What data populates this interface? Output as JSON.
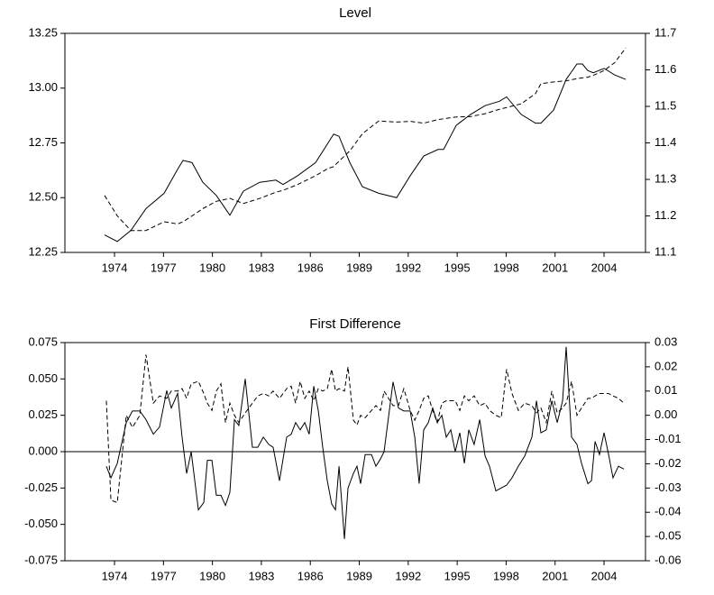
{
  "chart_data": [
    {
      "type": "line",
      "title": "Level",
      "x": [
        1973.39,
        1974.17,
        1975.0,
        1975.93,
        1977.04,
        1977.87,
        1978.2,
        1978.75,
        1979.41,
        1980.24,
        1981.07,
        1981.9,
        1982.9,
        1983.89,
        1984.33,
        1985.22,
        1986.32,
        1987.09,
        1987.43,
        1987.76,
        1988.42,
        1989.19,
        1990.19,
        1991.29,
        1992.12,
        1992.95,
        1993.83,
        1994.17,
        1994.94,
        1995.82,
        1996.71,
        1997.59,
        1998.03,
        1998.92,
        1999.8,
        2000.13,
        2000.91,
        2001.68,
        2002.34,
        2002.67,
        2003.01,
        2003.34,
        2004.0,
        2004.66,
        2005.33
      ],
      "xlim": [
        1970.96,
        2006.54
      ],
      "xticks": [
        1974,
        1977,
        1980,
        1983,
        1986,
        1989,
        1992,
        1995,
        1998,
        2001,
        2004
      ],
      "ylim": [
        12.25,
        13.25
      ],
      "yticks": [
        12.25,
        {
          "value": 12.5,
          "label": "12.50"
        },
        12.75,
        {
          "value": 13,
          "label": "13.00"
        },
        13.25
      ],
      "y2lim": [
        11.1,
        11.7
      ],
      "y2ticks": [
        11.1,
        11.2,
        11.3,
        11.4,
        11.5,
        11.6,
        11.7
      ],
      "series": [
        {
          "color": "#000000",
          "dash": "solid",
          "values": [
            12.33,
            12.3,
            12.35,
            12.45,
            12.52,
            12.63,
            12.67,
            12.66,
            12.57,
            12.51,
            12.42,
            12.53,
            12.57,
            12.58,
            12.56,
            12.6,
            12.66,
            12.75,
            12.79,
            12.78,
            12.66,
            12.55,
            12.52,
            12.5,
            12.6,
            12.69,
            12.72,
            12.72,
            12.83,
            12.88,
            12.92,
            12.94,
            12.96,
            12.88,
            12.84,
            12.84,
            12.9,
            13.04,
            13.11,
            13.11,
            13.08,
            13.07,
            13.09,
            13.06,
            13.04
          ]
        },
        {
          "color": "#000000",
          "dash": "dashed",
          "axis": "y2",
          "values": [
            11.256,
            11.2,
            11.16,
            11.16,
            11.184,
            11.178,
            11.184,
            11.2,
            11.22,
            11.24,
            11.248,
            11.234,
            11.248,
            11.265,
            11.27,
            11.286,
            11.31,
            11.33,
            11.335,
            11.35,
            11.378,
            11.425,
            11.46,
            11.457,
            11.459,
            11.454,
            11.464,
            11.466,
            11.471,
            11.472,
            11.48,
            11.492,
            11.497,
            11.507,
            11.535,
            11.562,
            11.567,
            11.57,
            11.576,
            11.578,
            11.58,
            11.585,
            11.598,
            11.62,
            11.66
          ]
        }
      ]
    },
    {
      "type": "line",
      "title": "First Difference",
      "zero_line": true,
      "x": [
        1973.5,
        1973.78,
        1974.17,
        1974.72,
        1975.1,
        1975.55,
        1975.93,
        1976.38,
        1976.76,
        1977.2,
        1977.48,
        1977.87,
        1978.14,
        1978.42,
        1978.7,
        1979.14,
        1979.47,
        1979.69,
        1979.97,
        1980.24,
        1980.52,
        1980.8,
        1981.07,
        1981.35,
        1981.62,
        1982.01,
        1982.45,
        1982.78,
        1983.12,
        1983.45,
        1983.72,
        1984.11,
        1984.55,
        1984.83,
        1985.1,
        1985.38,
        1985.66,
        1985.93,
        1986.21,
        1986.49,
        1986.76,
        1987.04,
        1987.31,
        1987.54,
        1987.76,
        1988.09,
        1988.31,
        1988.64,
        1988.86,
        1989.08,
        1989.36,
        1989.75,
        1990.02,
        1990.3,
        1990.52,
        1991.07,
        1991.4,
        1991.73,
        1992.12,
        1992.4,
        1992.67,
        1992.95,
        1993.23,
        1993.5,
        1993.78,
        1994.06,
        1994.33,
        1994.61,
        1994.88,
        1995.16,
        1995.44,
        1995.71,
        1996.04,
        1996.38,
        1996.71,
        1996.98,
        1997.37,
        1997.7,
        1998.03,
        1998.36,
        1998.75,
        1999.14,
        1999.58,
        1999.86,
        2000.13,
        2000.46,
        2000.8,
        2001.13,
        2001.46,
        2001.68,
        2002.01,
        2002.34,
        2002.62,
        2003.01,
        2003.23,
        2003.45,
        2003.72,
        2004.0,
        2004.28,
        2004.55,
        2004.88,
        2005.22
      ],
      "xlim": [
        1970.96,
        2006.54
      ],
      "xticks": [
        1974,
        1977,
        1980,
        1983,
        1986,
        1989,
        1992,
        1995,
        1998,
        2001,
        2004
      ],
      "ylim": [
        -0.075,
        0.075
      ],
      "yticks": [
        -0.075,
        {
          "value": -0.05,
          "label": "-0.050"
        },
        -0.025,
        {
          "value": 0,
          "label": "0.000"
        },
        0.025,
        {
          "value": 0.05,
          "label": "0.050"
        },
        0.075
      ],
      "y2lim": [
        -0.06,
        0.03
      ],
      "y2ticks": [
        -0.06,
        -0.05,
        -0.04,
        -0.03,
        -0.02,
        -0.01,
        {
          "value": 0,
          "label": "0.00"
        },
        0.01,
        0.02,
        0.03
      ],
      "series": [
        {
          "color": "#000000",
          "dash": "solid",
          "values": [
            -0.01,
            -0.018,
            -0.008,
            0.02,
            0.028,
            0.028,
            0.022,
            0.012,
            0.017,
            0.042,
            0.03,
            0.04,
            0.01,
            -0.015,
            0.0,
            -0.04,
            -0.035,
            -0.006,
            -0.006,
            -0.03,
            -0.03,
            -0.037,
            -0.028,
            0.022,
            0.018,
            0.05,
            0.003,
            0.003,
            0.01,
            0.005,
            0.003,
            -0.02,
            0.01,
            0.012,
            0.02,
            0.015,
            0.02,
            0.012,
            0.045,
            0.028,
            0.003,
            -0.02,
            -0.036,
            -0.04,
            -0.01,
            -0.06,
            -0.025,
            -0.015,
            -0.01,
            -0.022,
            -0.002,
            -0.002,
            -0.01,
            -0.005,
            0.0,
            0.048,
            0.03,
            0.028,
            0.028,
            0.01,
            -0.022,
            0.015,
            0.02,
            0.03,
            0.02,
            0.025,
            0.01,
            0.015,
            0.0,
            0.013,
            -0.008,
            0.015,
            0.005,
            0.022,
            -0.003,
            -0.01,
            -0.027,
            -0.025,
            -0.023,
            -0.018,
            -0.01,
            -0.003,
            0.01,
            0.035,
            0.013,
            0.015,
            0.035,
            0.02,
            0.035,
            0.072,
            0.01,
            0.005,
            -0.008,
            -0.022,
            -0.02,
            0.007,
            -0.002,
            0.013,
            -0.002,
            -0.018,
            -0.01,
            -0.012
          ]
        },
        {
          "color": "#000000",
          "dash": "dashed",
          "axis": "y2",
          "values": [
            0.006,
            -0.035,
            -0.036,
            0.0,
            -0.005,
            0.0,
            0.025,
            0.005,
            0.008,
            0.007,
            0.01,
            0.01,
            0.011,
            0.007,
            0.013,
            0.014,
            0.009,
            0.005,
            0.002,
            0.01,
            0.013,
            -0.003,
            0.005,
            0.0,
            -0.003,
            0.001,
            0.005,
            0.008,
            0.009,
            0.008,
            0.01,
            0.007,
            0.011,
            0.012,
            0.005,
            0.014,
            0.007,
            0.01,
            0.006,
            0.011,
            0.01,
            0.011,
            0.019,
            0.01,
            0.011,
            0.01,
            0.02,
            -0.002,
            -0.004,
            0.0,
            -0.001,
            0.002,
            0.004,
            0.002,
            0.01,
            0.004,
            0.004,
            0.011,
            0.002,
            -0.002,
            0.002,
            0.007,
            0.008,
            0.002,
            -0.003,
            0.005,
            0.006,
            0.006,
            0.006,
            0.002,
            0.008,
            0.006,
            0.008,
            0.004,
            0.005,
            0.002,
            0.0,
            -0.001,
            0.019,
            0.009,
            0.002,
            0.005,
            0.004,
            0.001,
            0.003,
            -0.003,
            0.01,
            0.001,
            0.003,
            0.005,
            0.014,
            0.0,
            0.003,
            0.007,
            0.007,
            0.008,
            0.009,
            0.009,
            0.009,
            0.008,
            0.007,
            0.005
          ]
        }
      ]
    }
  ]
}
